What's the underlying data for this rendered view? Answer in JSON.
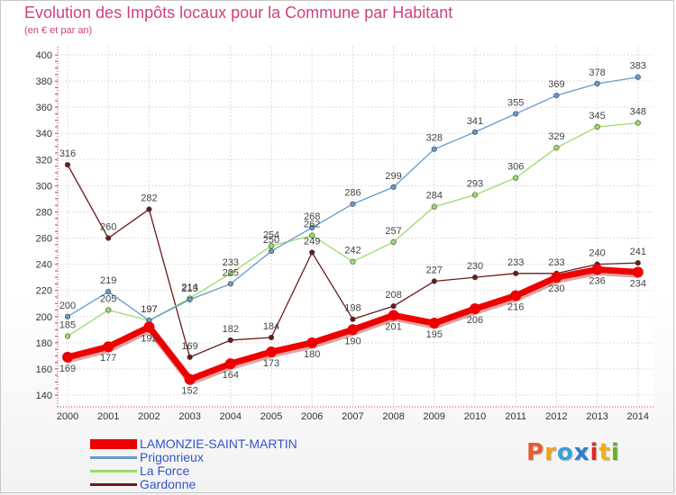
{
  "header": {
    "title": "Evolution des Impôts locaux pour la Commune par Habitant",
    "subtitle": "(en € et par an)"
  },
  "logo": {
    "text": "Proxiti",
    "colors": [
      "#e85a2a",
      "#f4a020",
      "#3aa0d8",
      "#2a7fc8",
      "#e0282a",
      "#f0b010",
      "#6ab020"
    ]
  },
  "chart_data": {
    "type": "line",
    "title": "Evolution des Impôts locaux pour la Commune par Habitant",
    "subtitle": "(en € et par an)",
    "xlabel": "",
    "ylabel": "",
    "x": [
      "2000",
      "2001",
      "2002",
      "2003",
      "2004",
      "2005",
      "2006",
      "2007",
      "2008",
      "2009",
      "2010",
      "2011",
      "2012",
      "2013",
      "2014"
    ],
    "ylim": [
      140,
      400
    ],
    "yticks": [
      140,
      160,
      180,
      200,
      220,
      240,
      260,
      280,
      300,
      320,
      340,
      360,
      380,
      400
    ],
    "grid": true,
    "legend": "bottom-left",
    "series": [
      {
        "name": "LAMONZIE-SAINT-MARTIN",
        "color": "#ee0000",
        "values": [
          169,
          177,
          192,
          152,
          164,
          173,
          180,
          190,
          201,
          195,
          206,
          216,
          230,
          236,
          234
        ],
        "labels": [
          "169",
          "177",
          "192",
          "152",
          "164",
          "173",
          "180",
          "190",
          "201",
          "195",
          "206",
          "216",
          "230",
          "236",
          "234"
        ]
      },
      {
        "name": "Prigonrieux",
        "color": "#6699cc",
        "values": [
          200,
          219,
          197,
          213,
          225,
          250,
          268,
          286,
          299,
          328,
          341,
          355,
          369,
          378,
          383
        ],
        "labels": [
          "200",
          "219",
          "197",
          "213",
          "225",
          "250",
          "268",
          "286",
          "299",
          "328",
          "341",
          "355",
          "369",
          "378",
          "383"
        ]
      },
      {
        "name": "La Force",
        "color": "#99dd66",
        "values": [
          185,
          205,
          197,
          214,
          233,
          254,
          262,
          242,
          257,
          284,
          293,
          306,
          329,
          345,
          348
        ],
        "labels": [
          "185",
          "205",
          "197",
          "214",
          "233",
          "254",
          "262",
          "242",
          "257",
          "284",
          "293",
          "306",
          "329",
          "345",
          "348"
        ]
      },
      {
        "name": "Gardonne",
        "color": "#6b1a1a",
        "values": [
          316,
          260,
          282,
          169,
          182,
          184,
          249,
          198,
          208,
          227,
          230,
          233,
          233,
          240,
          241
        ],
        "labels": [
          "316",
          "260",
          "282",
          "169",
          "182",
          "184",
          "249",
          "198",
          "208",
          "227",
          "230",
          "233",
          "233",
          "240",
          "241"
        ]
      }
    ]
  }
}
